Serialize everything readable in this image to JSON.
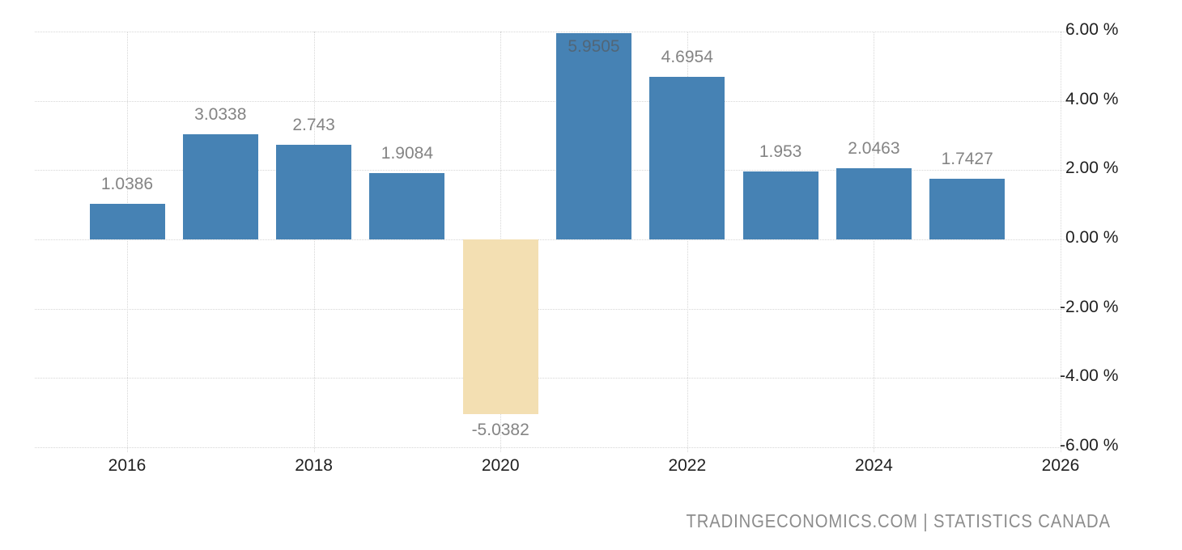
{
  "chart_data": {
    "type": "bar",
    "title": "",
    "xlabel": "",
    "ylabel": "",
    "categories": [
      "2016",
      "2017",
      "2018",
      "2019",
      "2020",
      "2021",
      "2022",
      "2023",
      "2024",
      "2025"
    ],
    "values": [
      1.0386,
      3.0338,
      2.743,
      1.9084,
      -5.0382,
      5.9505,
      4.6954,
      1.953,
      2.0463,
      1.7427
    ],
    "bar_labels": [
      "1.0386",
      "3.0338",
      "2.743",
      "1.9084",
      "-5.0382",
      "5.9505",
      "4.6954",
      "1.953",
      "2.0463",
      "1.7427"
    ],
    "ylim": [
      -6,
      6
    ],
    "xlim": [
      2015,
      2026
    ],
    "grid": true,
    "legend": false,
    "y_axis": {
      "side": "right",
      "ticks": [
        {
          "value": 6,
          "label": "6.00 %"
        },
        {
          "value": 4,
          "label": "4.00 %"
        },
        {
          "value": 2,
          "label": "2.00 %"
        },
        {
          "value": 0,
          "label": "0.00 %"
        },
        {
          "value": -2,
          "label": "-2.00 %"
        },
        {
          "value": -4,
          "label": "-4.00 %"
        },
        {
          "value": -6,
          "label": "-6.00 %"
        }
      ]
    },
    "x_axis": {
      "side": "bottom",
      "ticks": [
        {
          "value": 2016,
          "label": "2016"
        },
        {
          "value": 2018,
          "label": "2018"
        },
        {
          "value": 2020,
          "label": "2020"
        },
        {
          "value": 2022,
          "label": "2022"
        },
        {
          "value": 2024,
          "label": "2024"
        },
        {
          "value": 2026,
          "label": "2026"
        }
      ]
    },
    "colors": {
      "positive_bar": "#4682B4",
      "negative_bar": "#F3DFB2",
      "gridline": "#D6D6D6",
      "bar_label": "#848484",
      "axis_text": "#1F1F1F",
      "attribution_text": "#8C8C8C"
    },
    "attribution": "TRADINGECONOMICS.COM | STATISTICS CANADA"
  }
}
